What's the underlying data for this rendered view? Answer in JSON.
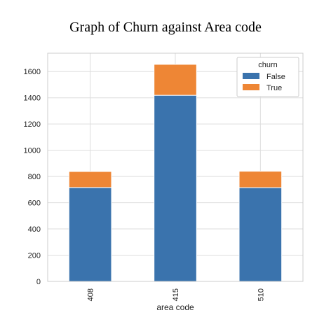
{
  "chart_data": {
    "type": "bar",
    "stacked": true,
    "title": "Graph of Churn against Area code",
    "xlabel": "area code",
    "ylabel": "",
    "categories": [
      "408",
      "415",
      "510"
    ],
    "series": [
      {
        "name": "False",
        "color": "#3a73ad",
        "values": [
          716,
          1419,
          715
        ]
      },
      {
        "name": "True",
        "color": "#ee8635",
        "values": [
          122,
          236,
          125
        ]
      }
    ],
    "ylim": [
      0,
      1740
    ],
    "yticks": [
      0,
      200,
      400,
      600,
      800,
      1000,
      1200,
      1400,
      1600
    ],
    "grid": true,
    "legend": {
      "title": "churn",
      "placement": "top-right"
    }
  }
}
